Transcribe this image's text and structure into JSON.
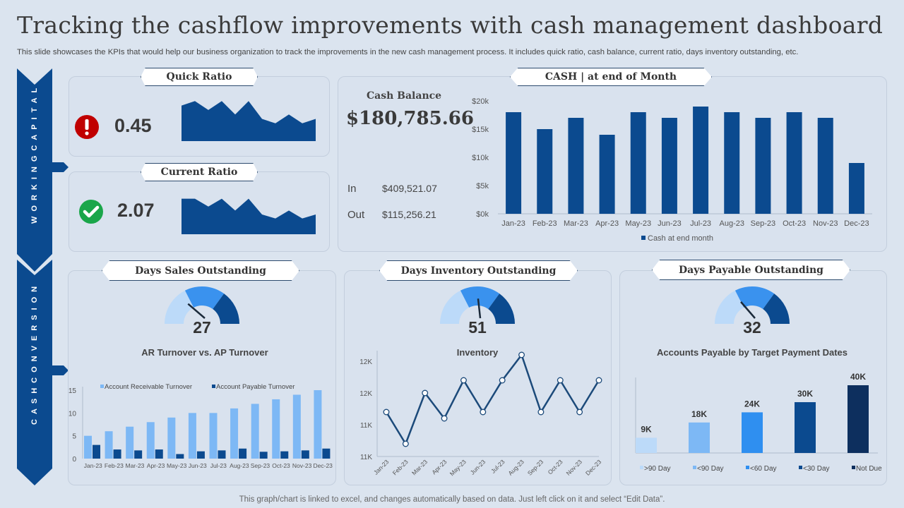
{
  "title": "Tracking the cashflow improvements with cash management dashboard",
  "subtitle": "This slide showcases the KPIs that would help our business organization to track the improvements in the new cash management process. It includes quick ratio, cash balance, current ratio, days inventory outstanding, etc.",
  "footer": "This graph/chart is linked to excel, and changes automatically based on data. Just left click on it and select “Edit Data”.",
  "colors": {
    "primary": "#0b4a8f",
    "dark": "#0d2f5e",
    "mid": "#2f8ff0",
    "light": "#7db8f5",
    "pale": "#bcdaf9",
    "alert": "#c00000",
    "ok": "#1aa64a"
  },
  "side": {
    "working_capital": "WORKINGCAPITAL",
    "cash_conversion": "CASHCONVERSION"
  },
  "quick_ratio": {
    "label": "Quick Ratio",
    "value": "0.45",
    "status_icon": "alert-icon",
    "trend": [
      8,
      9,
      7,
      9,
      6,
      9,
      5,
      4,
      6,
      4,
      5
    ]
  },
  "current_ratio": {
    "label": "Current Ratio",
    "value": "2.07",
    "status_icon": "check-icon",
    "trend": [
      9,
      9,
      7,
      9,
      6,
      9,
      5,
      4,
      6,
      4,
      5
    ]
  },
  "cash": {
    "label": "CASH | at end of Month",
    "balance_label": "Cash Balance",
    "balance": "$180,785.66",
    "in_label": "In",
    "in_value": "$409,521.07",
    "out_label": "Out",
    "out_value": "$115,256.21"
  },
  "dso": {
    "label": "Days Sales Outstanding",
    "value": "27",
    "gauge_max": 100
  },
  "dio": {
    "label": "Days Inventory Outstanding",
    "value": "51",
    "gauge_max": 100
  },
  "dpo": {
    "label": "Days Payable Outstanding",
    "value": "32",
    "gauge_max": 100
  },
  "chart_data": [
    {
      "id": "cash",
      "type": "bar",
      "categories": [
        "Jan-23",
        "Feb-23",
        "Mar-23",
        "Apr-23",
        "May-23",
        "Jun-23",
        "Jul-23",
        "Aug-23",
        "Sep-23",
        "Oct-23",
        "Nov-23",
        "Dec-23"
      ],
      "series": [
        {
          "name": "Cash at end month",
          "values": [
            18000,
            15000,
            17000,
            14000,
            18000,
            17000,
            19000,
            18000,
            17000,
            18000,
            17000,
            9000
          ]
        }
      ],
      "ylim": [
        0,
        20000
      ],
      "yticks": [
        "$0k",
        "$5k",
        "$10k",
        "$15k",
        "$20k"
      ],
      "legend": "bottom"
    },
    {
      "id": "turnover",
      "type": "bar",
      "title": "AR Turnover vs. AP Turnover",
      "categories": [
        "Jan-23",
        "Feb-23",
        "Mar-23",
        "Apr-23",
        "May-23",
        "Jun-23",
        "Jul-23",
        "Aug-23",
        "Sep-23",
        "Oct-23",
        "Nov-23",
        "Dec-23"
      ],
      "series": [
        {
          "name": "Account Receivable Turnover",
          "values": [
            5,
            6,
            7,
            8,
            9,
            10,
            10,
            11,
            12,
            13,
            14,
            15
          ]
        },
        {
          "name": "Account Payable Turnover",
          "values": [
            3,
            2,
            1.8,
            2,
            1,
            1.6,
            1.8,
            2.2,
            1.5,
            1.6,
            1.8,
            2.2
          ]
        }
      ],
      "ylim": [
        0,
        15
      ],
      "yticks": [
        "0",
        "5",
        "10",
        "15"
      ],
      "legend": "top"
    },
    {
      "id": "inventory",
      "type": "line",
      "title": "Inventory",
      "categories": [
        "Jan-23",
        "Feb-23",
        "Mar-23",
        "Apr-23",
        "May-23",
        "Jun-23",
        "Jul-23",
        "Aug-23",
        "Sep-23",
        "Oct-23",
        "Nov-23",
        "Dec-23"
      ],
      "values": [
        11200,
        10700,
        11500,
        11100,
        11700,
        11200,
        11700,
        12100,
        11200,
        11700,
        11200,
        11700
      ],
      "ylim": [
        10500,
        12000
      ],
      "yticks": [
        "11K",
        "11K",
        "12K",
        "12K"
      ]
    },
    {
      "id": "payable",
      "type": "bar",
      "title": "Accounts  Payable by Target Payment Dates",
      "categories": [
        ">90 Day",
        "<90 Day",
        "<60 Day",
        "<30 Day",
        "Not Due"
      ],
      "values": [
        9000,
        18000,
        24000,
        30000,
        40000
      ],
      "labels": [
        "9K",
        "18K",
        "24K",
        "30K",
        "40K"
      ],
      "colors": [
        "#bcdaf9",
        "#7db8f5",
        "#2f8ff0",
        "#0b4a8f",
        "#0d2f5e"
      ],
      "legend": "bottom"
    }
  ]
}
